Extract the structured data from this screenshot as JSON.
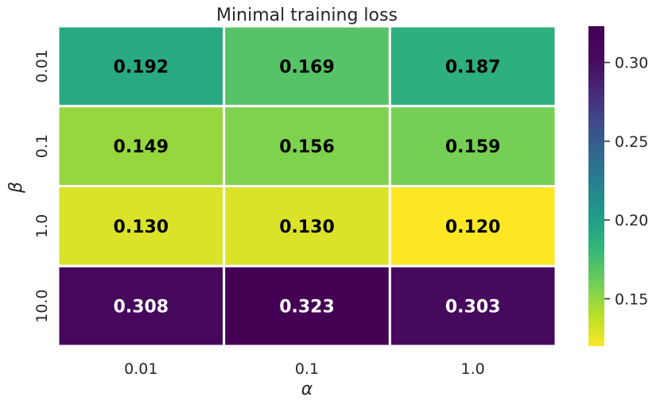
{
  "chart_data": {
    "type": "heatmap",
    "title": "Minimal training loss",
    "xlabel": "α",
    "ylabel": "β",
    "x_categories": [
      "0.01",
      "0.1",
      "1.0"
    ],
    "y_categories": [
      "0.01",
      "0.1",
      "1.0",
      "10.0"
    ],
    "values": [
      [
        0.192,
        0.169,
        0.187
      ],
      [
        0.149,
        0.156,
        0.159
      ],
      [
        0.13,
        0.13,
        0.12
      ],
      [
        0.308,
        0.323,
        0.303
      ]
    ],
    "cell_labels": [
      [
        "0.192",
        "0.169",
        "0.187"
      ],
      [
        "0.149",
        "0.156",
        "0.159"
      ],
      [
        "0.130",
        "0.130",
        "0.120"
      ],
      [
        "0.308",
        "0.323",
        "0.303"
      ]
    ],
    "colormap": "viridis_r",
    "vmin": 0.12,
    "vmax": 0.323,
    "colorbar_ticks": [
      "0.15",
      "0.20",
      "0.25",
      "0.30"
    ],
    "colorbar_tick_values": [
      0.15,
      0.2,
      0.25,
      0.3
    ]
  }
}
